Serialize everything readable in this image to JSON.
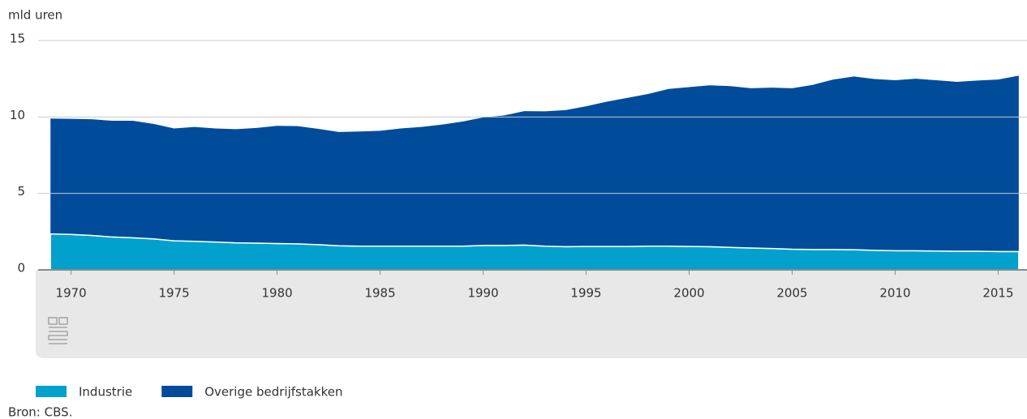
{
  "chart_data": {
    "type": "stacked-area",
    "axis_label": "mld uren",
    "source": "Bron: CBS.",
    "x": [
      1969,
      1970,
      1971,
      1972,
      1973,
      1974,
      1975,
      1976,
      1977,
      1978,
      1979,
      1980,
      1981,
      1982,
      1983,
      1984,
      1985,
      1986,
      1987,
      1988,
      1989,
      1990,
      1991,
      1992,
      1993,
      1994,
      1995,
      1996,
      1997,
      1998,
      1999,
      2000,
      2001,
      2002,
      2003,
      2004,
      2005,
      2006,
      2007,
      2008,
      2009,
      2010,
      2011,
      2012,
      2013,
      2014,
      2015,
      2016
    ],
    "series": [
      {
        "name": "Industrie",
        "color": "#00a1cd",
        "values": [
          2.35,
          2.32,
          2.25,
          2.15,
          2.1,
          2.03,
          1.9,
          1.87,
          1.82,
          1.77,
          1.75,
          1.72,
          1.7,
          1.65,
          1.58,
          1.55,
          1.55,
          1.55,
          1.55,
          1.55,
          1.55,
          1.6,
          1.6,
          1.62,
          1.55,
          1.52,
          1.53,
          1.53,
          1.53,
          1.55,
          1.55,
          1.53,
          1.52,
          1.47,
          1.43,
          1.4,
          1.35,
          1.33,
          1.33,
          1.32,
          1.28,
          1.25,
          1.25,
          1.23,
          1.22,
          1.22,
          1.2,
          1.2
        ]
      },
      {
        "name": "Overige bedrijfstakken",
        "color": "#004c9b",
        "values": [
          7.55,
          7.56,
          7.6,
          7.6,
          7.65,
          7.52,
          7.35,
          7.48,
          7.43,
          7.43,
          7.53,
          7.7,
          7.7,
          7.57,
          7.44,
          7.5,
          7.55,
          7.7,
          7.8,
          7.95,
          8.15,
          8.37,
          8.5,
          8.76,
          8.82,
          8.93,
          9.17,
          9.47,
          9.72,
          9.95,
          10.28,
          10.42,
          10.55,
          10.55,
          10.45,
          10.52,
          10.53,
          10.77,
          11.12,
          11.33,
          11.2,
          11.15,
          11.25,
          11.17,
          11.08,
          11.16,
          11.25,
          11.5
        ]
      }
    ],
    "xlim": [
      1968.4,
      2016.4
    ],
    "xticks": [
      1970,
      1975,
      1980,
      1985,
      1990,
      1995,
      2000,
      2005,
      2010,
      2015
    ],
    "ylim": [
      0,
      15
    ],
    "yticks": [
      0,
      5,
      10,
      15
    ],
    "grid": true
  }
}
